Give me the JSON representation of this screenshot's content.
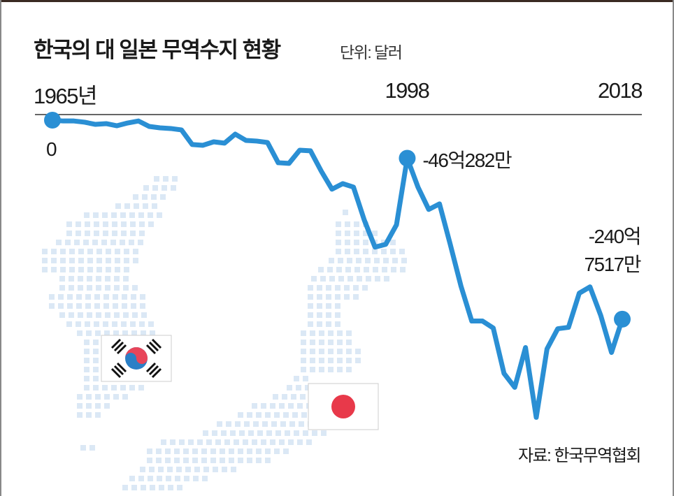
{
  "chart_data": {
    "type": "line",
    "title": "한국의 대 일본 무역수지 현황",
    "subtitle": "단위: 달러",
    "source": "자료: 한국무역협회",
    "x": [
      1965,
      1966,
      1967,
      1968,
      1969,
      1970,
      1971,
      1972,
      1973,
      1974,
      1975,
      1976,
      1977,
      1978,
      1979,
      1980,
      1981,
      1982,
      1983,
      1984,
      1985,
      1986,
      1987,
      1988,
      1989,
      1990,
      1991,
      1992,
      1993,
      1994,
      1995,
      1996,
      1997,
      1998,
      1999,
      2000,
      2001,
      2002,
      2003,
      2004,
      2005,
      2006,
      2007,
      2008,
      2009,
      2010,
      2011,
      2012,
      2013,
      2014,
      2015,
      2016,
      2017,
      2018
    ],
    "xlim": [
      1965,
      2018
    ],
    "xticks": [
      {
        "value": 1965,
        "label": "1965년"
      },
      1998,
      2018
    ],
    "ylim": [
      -36000000000,
      0
    ],
    "color": "#2a8fd4",
    "values": [
      0,
      -100000000,
      -100000000,
      -250000000,
      -510000000,
      -420000000,
      -680000000,
      -340000000,
      -100000000,
      -760000000,
      -930000000,
      -1010000000,
      -1180000000,
      -2950000000,
      -3040000000,
      -2620000000,
      -2780000000,
      -1690000000,
      -2450000000,
      -2530000000,
      -2700000000,
      -5150000000,
      -5230000000,
      -3630000000,
      -3710000000,
      -6160000000,
      -8350000000,
      -7680000000,
      -8100000000,
      -12070000000,
      -15360000000,
      -15020000000,
      -12660000000,
      -4602820000,
      -8100000000,
      -10800000000,
      -10130000000,
      -15020000000,
      -20080000000,
      -24300000000,
      -24300000000,
      -25150000000,
      -30630000000,
      -32320000000,
      -27510000000,
      -35950000000,
      -27680000000,
      -25230000000,
      -25060000000,
      -20930000000,
      -20170000000,
      -23630000000,
      -28100000000,
      -24075170000
    ],
    "value_labels": [
      null,
      null,
      null,
      null,
      null,
      null,
      null,
      null,
      null,
      null,
      null,
      null,
      null,
      null,
      null,
      null,
      null,
      null,
      null,
      null,
      null,
      null,
      null,
      null,
      null,
      null,
      null,
      null,
      null,
      null,
      null,
      null,
      null,
      "-46억282만",
      null,
      null,
      null,
      null,
      null,
      null,
      null,
      null,
      null,
      null,
      null,
      null,
      null,
      null,
      null,
      null,
      null,
      null,
      null,
      "-240억\n7517만"
    ]
  }
}
